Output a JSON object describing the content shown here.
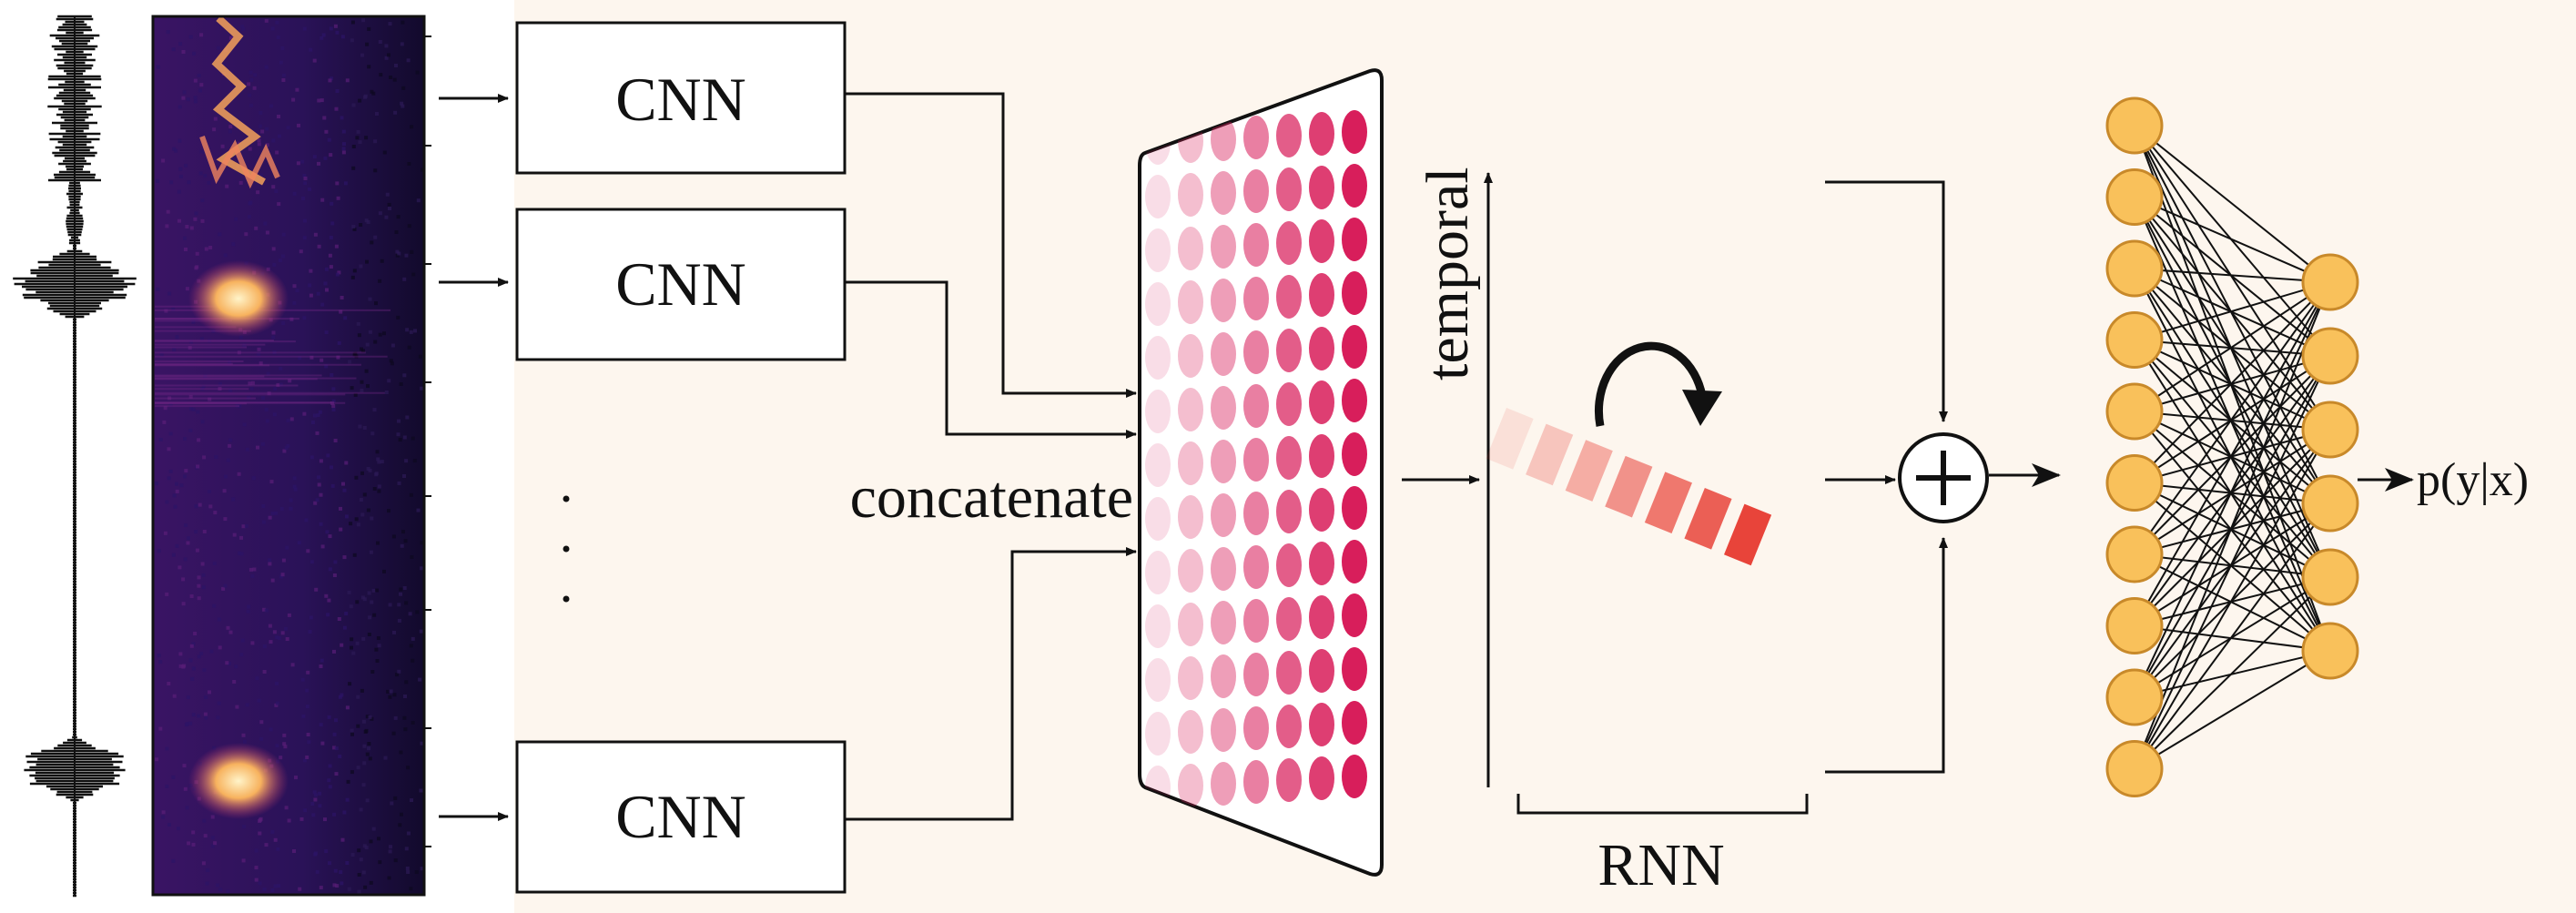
{
  "cnn_boxes": [
    {
      "label": "CNN"
    },
    {
      "label": "CNN"
    },
    {
      "label": "CNN"
    }
  ],
  "ellipsis": "· · ·",
  "labels": {
    "concatenate": "concatenate",
    "temporal": "temporal",
    "rnn": "RNN",
    "combine_symbol": "+",
    "output": "p(y|x)"
  },
  "colors": {
    "background_panel": "#fdf6ee",
    "spectrogram_bg": "#1c0f44",
    "spectrogram_hot": "#f7c06a",
    "feature_dot": "#d81e5b",
    "rnn_cell": "#e8443a",
    "neuron_fill": "#f9c15b",
    "neuron_stroke": "#c8892a",
    "line": "#111111"
  },
  "network": {
    "input_layer_nodes": 10,
    "hidden_layer_nodes": 6
  },
  "feature_grid": {
    "columns": 7,
    "rows": 13
  },
  "rnn_cells": 7
}
